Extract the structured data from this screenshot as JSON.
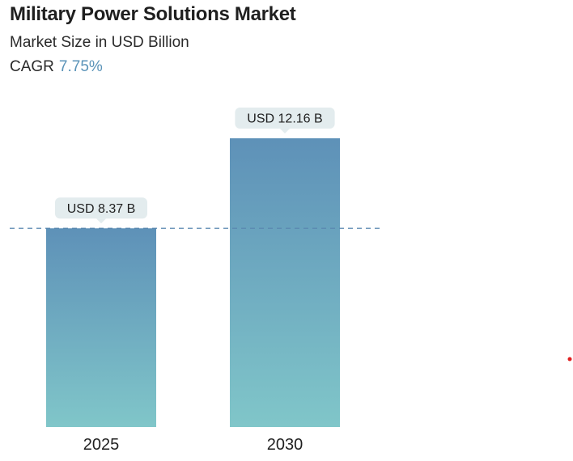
{
  "header": {
    "title": "Military Power Solutions Market",
    "subtitle": "Market Size in USD Billion",
    "cagr_label": "CAGR",
    "cagr_value": "7.75%"
  },
  "colors": {
    "bar_top": "#5e91b8",
    "bar_bottom": "#80c6c9",
    "label_bg": "#e3ecee",
    "reference_line": "#5a88b0",
    "marker_dot": "#e02020"
  },
  "chart_data": {
    "type": "bar",
    "title": "Military Power Solutions Market",
    "ylabel": "Market Size in USD Billion",
    "categories": [
      "2025",
      "2030"
    ],
    "values": [
      8.37,
      12.16
    ],
    "data_labels": [
      "USD 8.37 B",
      "USD 12.16 B"
    ],
    "reference_line_value": 8.37,
    "ylim": [
      0,
      12.16
    ],
    "grid": false
  }
}
